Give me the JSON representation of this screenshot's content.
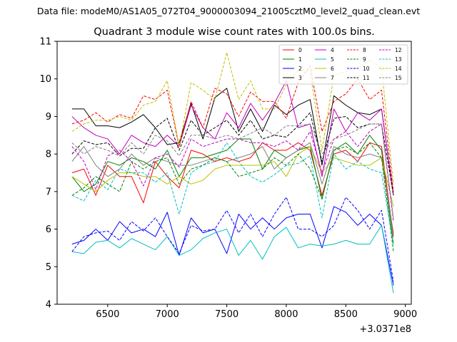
{
  "chart_data": {
    "type": "line",
    "suptitle": "Data file: modeM0/AS1A05_072T04_9000003094_21005cztM0_level2_quad_clean.evt",
    "title": "Quadrant 3 module wise count rates with 100.0s bins.",
    "xlabel": "",
    "ylabel": "",
    "x_offset_label": "+3.0371e8",
    "xlim": [
      6075,
      9050
    ],
    "ylim": [
      4,
      11
    ],
    "xticks": [
      6500,
      7000,
      7500,
      8000,
      8500,
      9000
    ],
    "yticks": [
      4,
      5,
      6,
      7,
      8,
      9,
      10,
      11
    ],
    "x": [
      6200,
      6300,
      6400,
      6500,
      6600,
      6700,
      6800,
      6900,
      7000,
      7100,
      7200,
      7300,
      7400,
      7500,
      7600,
      7700,
      7800,
      7900,
      8000,
      8100,
      8200,
      8300,
      8400,
      8500,
      8600,
      8700,
      8800,
      8900
    ],
    "series": [
      {
        "name": "0",
        "color": "#ff0000",
        "dash": "solid",
        "values": [
          7.5,
          7.6,
          6.9,
          7.7,
          7.4,
          7.4,
          6.7,
          7.8,
          7.4,
          7.1,
          8.1,
          8.0,
          7.8,
          7.9,
          7.8,
          7.9,
          8.3,
          8.1,
          8.1,
          8.3,
          8.1,
          6.9,
          8.0,
          8.1,
          7.8,
          8.3,
          8.2,
          5.8
        ]
      },
      {
        "name": "1",
        "color": "#008000",
        "dash": "solid",
        "values": [
          7.4,
          7.0,
          7.2,
          7.8,
          7.7,
          7.9,
          7.8,
          7.6,
          8.1,
          7.4,
          7.9,
          7.9,
          8.0,
          8.1,
          8.4,
          8.4,
          7.6,
          8.1,
          7.9,
          8.1,
          8.2,
          6.8,
          8.1,
          8.3,
          8.0,
          8.5,
          8.1,
          5.6
        ]
      },
      {
        "name": "2",
        "color": "#0000ff",
        "dash": "solid",
        "values": [
          5.6,
          5.7,
          6.0,
          5.7,
          6.2,
          5.9,
          6.0,
          5.8,
          6.45,
          5.3,
          6.3,
          5.9,
          6.0,
          5.35,
          6.4,
          6.0,
          6.3,
          6.0,
          6.3,
          6.4,
          6.4,
          5.5,
          6.6,
          6.45,
          6.1,
          6.4,
          6.1,
          4.5
        ]
      },
      {
        "name": "3",
        "color": "#000000",
        "dash": "solid",
        "values": [
          9.2,
          9.2,
          8.75,
          8.75,
          8.7,
          8.85,
          9.05,
          8.7,
          8.25,
          8.3,
          9.35,
          8.4,
          9.5,
          9.75,
          8.6,
          9.2,
          8.6,
          9.3,
          9.05,
          9.3,
          9.45,
          7.7,
          9.55,
          9.3,
          9.1,
          9.05,
          9.2,
          6.9
        ]
      },
      {
        "name": "4",
        "color": "#bf00bf",
        "dash": "solid",
        "values": [
          9.0,
          8.7,
          8.5,
          8.4,
          8.0,
          8.5,
          8.3,
          8.2,
          8.5,
          8.2,
          9.3,
          8.7,
          8.4,
          9.1,
          8.7,
          9.35,
          8.9,
          9.35,
          9.95,
          8.7,
          8.8,
          7.4,
          9.2,
          8.6,
          9.1,
          8.9,
          9.2,
          6.9
        ]
      },
      {
        "name": "5",
        "color": "#00bfbf",
        "dash": "solid",
        "values": [
          5.4,
          5.35,
          5.65,
          5.7,
          5.5,
          5.75,
          5.6,
          5.45,
          5.8,
          5.3,
          5.45,
          5.75,
          5.9,
          6.0,
          5.3,
          5.7,
          5.2,
          5.8,
          6.05,
          5.5,
          5.6,
          5.55,
          5.6,
          5.7,
          5.6,
          5.6,
          6.1,
          4.3
        ]
      },
      {
        "name": "6",
        "color": "#bfbf00",
        "dash": "solid",
        "values": [
          7.4,
          7.2,
          7.0,
          7.3,
          7.5,
          7.5,
          7.4,
          7.4,
          7.2,
          7.4,
          7.2,
          7.3,
          7.6,
          7.7,
          7.7,
          7.7,
          7.7,
          7.8,
          7.4,
          8.0,
          8.2,
          7.5,
          7.9,
          7.8,
          7.7,
          7.7,
          7.9,
          6.6
        ]
      },
      {
        "name": "7",
        "color": "#808080",
        "dash": "solid",
        "values": [
          7.8,
          8.2,
          7.7,
          7.4,
          7.6,
          8.0,
          7.7,
          7.9,
          7.8,
          7.7,
          7.7,
          7.8,
          7.9,
          7.8,
          7.9,
          8.0,
          8.2,
          7.6,
          7.9,
          8.1,
          8.3,
          7.2,
          8.2,
          8.0,
          7.9,
          8.0,
          7.9,
          5.9
        ]
      },
      {
        "name": "8",
        "color": "#ff0000",
        "dash": "dashed",
        "values": [
          8.8,
          8.9,
          9.1,
          8.85,
          9.05,
          8.95,
          9.55,
          9.45,
          9.7,
          8.2,
          9.4,
          8.7,
          9.75,
          9.6,
          9.0,
          9.65,
          9.4,
          9.4,
          8.95,
          9.9,
          10.35,
          8.6,
          9.4,
          9.6,
          10.0,
          9.45,
          9.7,
          7.0
        ]
      },
      {
        "name": "9",
        "color": "#008000",
        "dash": "dashed",
        "values": [
          6.9,
          7.1,
          7.4,
          7.2,
          7.0,
          7.8,
          7.6,
          7.8,
          7.9,
          7.2,
          7.6,
          7.7,
          7.9,
          7.8,
          7.4,
          7.5,
          7.6,
          7.9,
          7.7,
          8.0,
          7.6,
          6.8,
          8.1,
          8.2,
          8.0,
          8.3,
          7.9,
          5.4
        ]
      },
      {
        "name": "10",
        "color": "#0000ff",
        "dash": "dashed",
        "values": [
          5.4,
          5.8,
          5.9,
          5.95,
          5.7,
          6.2,
          5.95,
          6.3,
          5.8,
          5.35,
          6.1,
          5.95,
          6.0,
          6.5,
          5.9,
          6.4,
          5.8,
          6.4,
          6.85,
          6.0,
          6.0,
          5.8,
          6.1,
          6.85,
          6.5,
          6.0,
          6.5,
          4.6
        ]
      },
      {
        "name": "11",
        "color": "#000000",
        "dash": "dashed",
        "values": [
          8.0,
          8.35,
          8.25,
          8.3,
          7.95,
          8.15,
          8.15,
          8.7,
          8.95,
          8.1,
          8.9,
          8.5,
          8.7,
          8.9,
          8.5,
          8.9,
          8.4,
          8.5,
          8.45,
          8.75,
          9.1,
          7.8,
          8.95,
          9.0,
          8.7,
          8.8,
          8.8,
          6.9
        ]
      },
      {
        "name": "12",
        "color": "#bf00bf",
        "dash": "dashed",
        "values": [
          8.2,
          7.8,
          7.05,
          7.95,
          8.1,
          7.8,
          7.15,
          7.9,
          8.0,
          7.65,
          8.4,
          8.2,
          8.3,
          8.4,
          8.4,
          8.3,
          8.3,
          8.2,
          8.35,
          8.1,
          8.6,
          7.5,
          8.4,
          8.6,
          8.2,
          8.6,
          8.8,
          6.2
        ]
      },
      {
        "name": "13",
        "color": "#00bfbf",
        "dash": "dashed",
        "values": [
          6.9,
          6.75,
          7.3,
          7.05,
          7.6,
          7.5,
          7.5,
          7.25,
          7.5,
          6.4,
          7.5,
          7.7,
          7.8,
          8.3,
          7.8,
          7.4,
          7.25,
          7.45,
          7.7,
          7.75,
          7.95,
          6.3,
          8.0,
          7.6,
          7.8,
          7.6,
          7.5,
          5.6
        ]
      },
      {
        "name": "14",
        "color": "#bfbf00",
        "dash": "dashed",
        "values": [
          8.6,
          8.8,
          8.9,
          8.9,
          9.0,
          8.9,
          9.3,
          9.4,
          9.95,
          8.2,
          9.9,
          9.7,
          9.45,
          10.7,
          9.45,
          9.95,
          9.2,
          9.2,
          9.85,
          10.25,
          10.2,
          8.1,
          10.1,
          10.2,
          10.3,
          10.5,
          10.3,
          7.2
        ]
      },
      {
        "name": "15",
        "color": "#808080",
        "dash": "dashed",
        "values": [
          8.3,
          8.0,
          8.2,
          8.1,
          7.95,
          8.3,
          8.0,
          8.5,
          8.35,
          7.95,
          8.5,
          8.5,
          8.4,
          8.5,
          8.4,
          8.55,
          8.7,
          8.5,
          8.75,
          8.75,
          8.8,
          8.0,
          8.4,
          8.5,
          8.65,
          8.8,
          8.8,
          6.3
        ]
      }
    ]
  }
}
